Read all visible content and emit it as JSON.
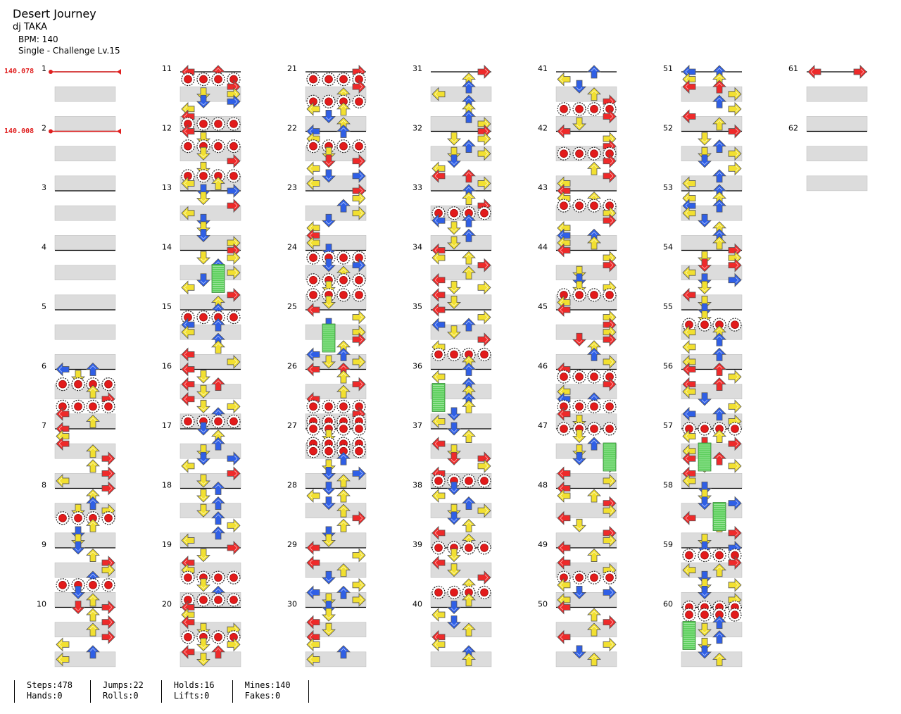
{
  "song": {
    "title": "Desert Journey",
    "artist": "dj TAKA",
    "bpm": "BPM: 140",
    "difficulty": "Single - Challenge Lv.15"
  },
  "bpm_changes": [
    {
      "measure": 1,
      "label": "140.078"
    },
    {
      "measure": 2,
      "label": "140.008"
    }
  ],
  "total_measures": 62,
  "measures_per_column": 10,
  "colors": {
    "left": "#ee2a2a",
    "down": "#2f5fe6",
    "up": "#2f5fe6",
    "right": "#ee2a2a",
    "yellow": "#f2e030",
    "mine": "#e21b1b",
    "hold": "#5fd05f",
    "stripe": "#dcdcdc",
    "bpm_line": "#e02020"
  },
  "icons": [
    "left-arrow-icon",
    "down-arrow-icon",
    "up-arrow-icon",
    "right-arrow-icon",
    "mine-icon",
    "hold-icon"
  ],
  "stats": {
    "steps": "Steps:478",
    "hands": "Hands:0",
    "jumps": "Jumps:22",
    "rolls": "Rolls:0",
    "holds": "Holds:16",
    "lifts": "Lifts:0",
    "mines": "Mines:140",
    "fakes": "Fakes:0"
  }
}
